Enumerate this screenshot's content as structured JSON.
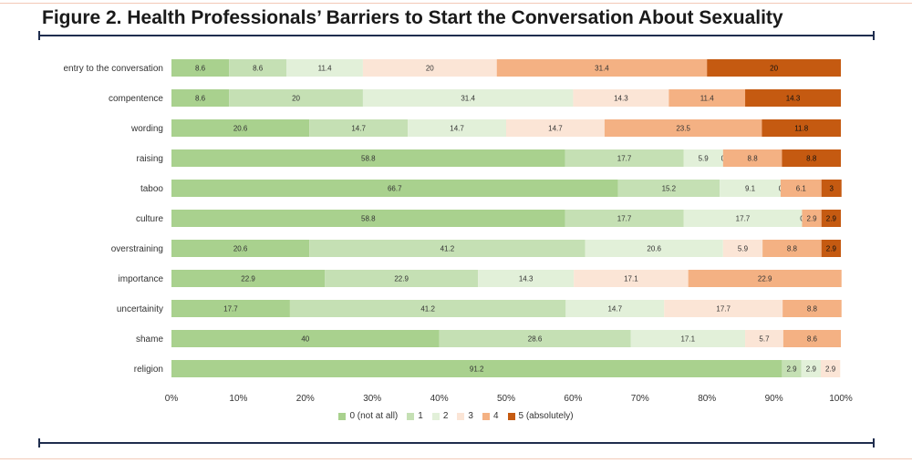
{
  "title": "Figure 2. Health Professionals’ Barriers to Start the Conversation About Sexuality",
  "chart_data": {
    "type": "bar",
    "orientation": "horizontal",
    "stacked": "percent",
    "categories": [
      "entry to the conversation",
      "compentence",
      "wording",
      "raising",
      "taboo",
      "culture",
      "overstraining",
      "importance",
      "uncertainity",
      "shame",
      "religion"
    ],
    "series": [
      {
        "name": "0 (not at all)",
        "color": "#a9d18e",
        "values": [
          8.6,
          8.6,
          20.6,
          58.8,
          66.7,
          58.8,
          20.6,
          22.9,
          17.7,
          40,
          91.2
        ]
      },
      {
        "name": "1",
        "color": "#c5e0b4",
        "values": [
          8.6,
          20,
          14.7,
          17.7,
          15.2,
          17.7,
          41.2,
          22.9,
          41.2,
          28.6,
          2.9
        ]
      },
      {
        "name": "2",
        "color": "#e2f0d9",
        "values": [
          11.4,
          31.4,
          14.7,
          5.9,
          9.1,
          17.7,
          20.6,
          14.3,
          14.7,
          17.1,
          2.9
        ]
      },
      {
        "name": "3",
        "color": "#fbe5d6",
        "values": [
          20,
          14.3,
          14.7,
          0,
          0,
          0,
          5.9,
          17.1,
          17.7,
          5.7,
          2.9
        ]
      },
      {
        "name": "4",
        "color": "#f4b183",
        "values": [
          31.4,
          11.4,
          23.5,
          8.8,
          6.1,
          2.9,
          8.8,
          22.9,
          8.8,
          8.6,
          null
        ]
      },
      {
        "name": "5 (absolutely)",
        "color": "#c55a11",
        "values": [
          20,
          14.3,
          11.8,
          8.8,
          3,
          2.9,
          2.9,
          null,
          null,
          null,
          null
        ]
      }
    ],
    "xlim": [
      0,
      100
    ],
    "x_ticks": [
      "0%",
      "10%",
      "20%",
      "30%",
      "40%",
      "50%",
      "60%",
      "70%",
      "80%",
      "90%",
      "100%"
    ],
    "legend_position": "bottom",
    "grid": false
  }
}
